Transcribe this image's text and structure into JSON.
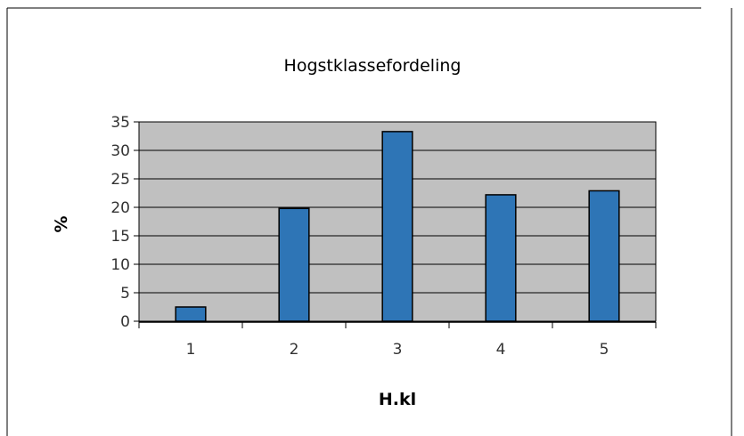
{
  "chart_data": {
    "type": "bar",
    "title": "Hogstklassefordeling",
    "xlabel": "H.kl",
    "ylabel": "%",
    "categories": [
      "1",
      "2",
      "3",
      "4",
      "5"
    ],
    "values": [
      2.5,
      19.8,
      33.3,
      22.2,
      22.9
    ],
    "ylim": [
      0,
      35
    ],
    "yticks": [
      0,
      5,
      10,
      15,
      20,
      25,
      30,
      35
    ],
    "grid": true,
    "legend": "none",
    "colors": {
      "bar_fill": "#2e75b6",
      "bar_stroke": "#000000",
      "plot_background": "#c0c0c0",
      "gridline": "#000000",
      "axis": "#000000"
    }
  }
}
